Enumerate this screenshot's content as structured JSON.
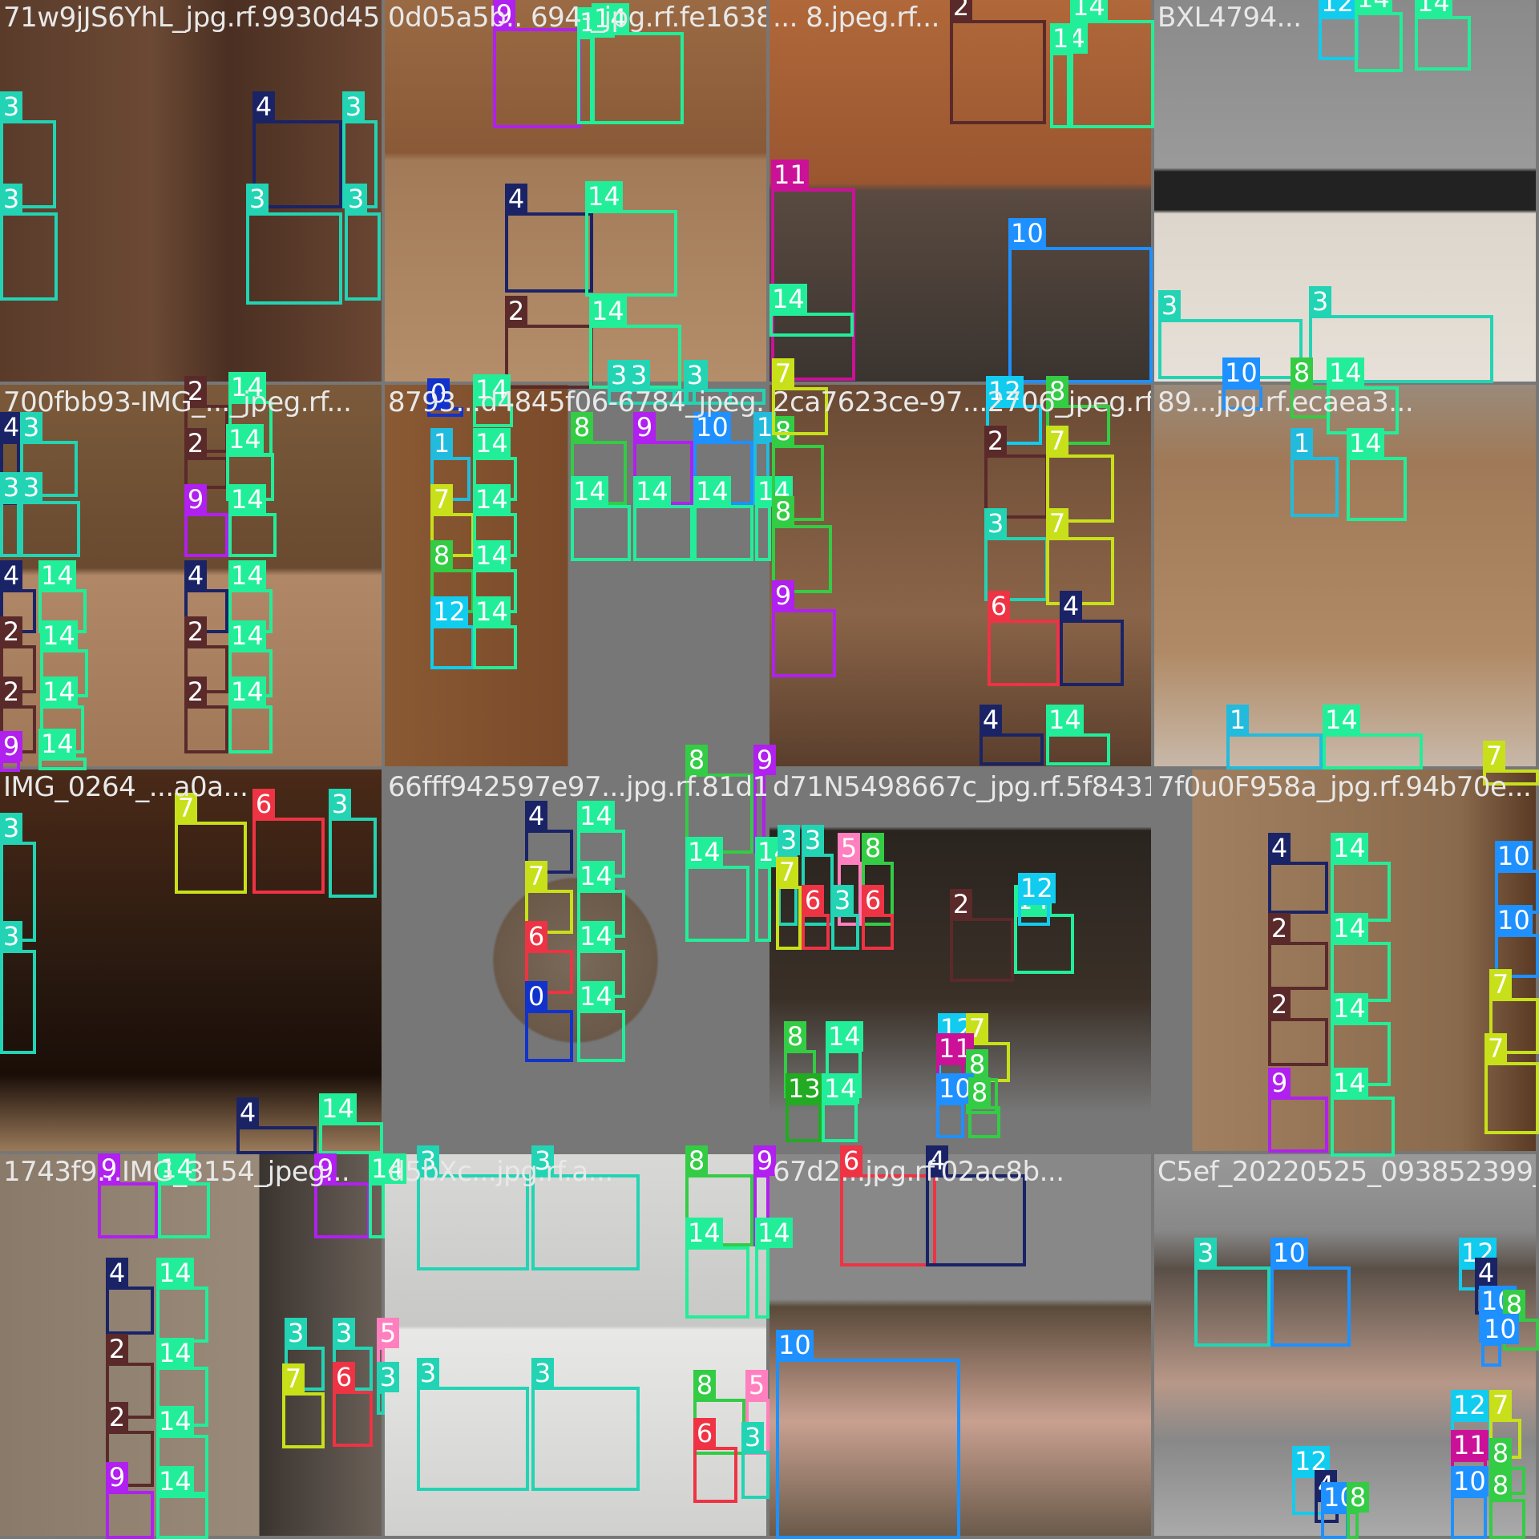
{
  "tiles": [
    {
      "name": "71w9jJS6YhL_jpg.rf.9930d45...",
      "bg": "wood-dark"
    },
    {
      "name": "0d05a5b.. 694-_jpg.rf.fe1638...",
      "bg": "wood-light"
    },
    {
      "name": "... 8.jpeg.rf...",
      "bg": "wood-orange"
    },
    {
      "name": "BXL4794...",
      "bg": "carpet"
    },
    {
      "name": "700fbb93-IMG_..._jpeg.rf...",
      "bg": "wood-split"
    },
    {
      "name": "8793...d4845f06-6784_jpeg.r...",
      "bg": "wood-gray"
    },
    {
      "name": "2ca7623ce-97...2706_jpeg.rf...",
      "bg": "wood-mid"
    },
    {
      "name": "89...jpg.rf.ecaea3...",
      "bg": "wood-pale"
    },
    {
      "name": "IMG_0264_...a0a...",
      "bg": "wood-black"
    },
    {
      "name": "66fff942597e97...jpg.rf.81d1...",
      "bg": "gray-center"
    },
    {
      "name": "d71N5498667c_jpg.rf.5f84316...",
      "bg": "dark-table"
    },
    {
      "name": "7f0u0F958a_jpg.rf.94b70e...",
      "bg": "wood-tan"
    },
    {
      "name": "1743f9...IMG_3154_jpeg...",
      "bg": "wood-split2"
    },
    {
      "name": "d5bXc...jpg.rf.a...",
      "bg": "white-table"
    },
    {
      "name": "67d2...jpg.rf.02ac8b...",
      "bg": "gray-hand"
    },
    {
      "name": "C5ef_20220525_093852399_...",
      "bg": "gray-light"
    }
  ],
  "classes": {
    "0": "#1133cc",
    "1": "#22bbdd",
    "2": "#5a2a2a",
    "3": "#22d4b4",
    "4": "#1a2366",
    "5": "#ff7fbf",
    "6": "#ee3344",
    "7": "#c8e01a",
    "8": "#33cc44",
    "9": "#b020ee",
    "10": "#1e90ff",
    "11": "#cc1199",
    "12": "#11ccee",
    "13": "#22aa22",
    "14": "#22ee99"
  },
  "boxes": [
    [
      0,
      3,
      0,
      150,
      70,
      110
    ],
    [
      0,
      3,
      0,
      265,
      72,
      110
    ],
    [
      0,
      4,
      315,
      150,
      112,
      110
    ],
    [
      0,
      3,
      427,
      150,
      44,
      110
    ],
    [
      0,
      3,
      307,
      265,
      120,
      115
    ],
    [
      0,
      3,
      430,
      265,
      45,
      110
    ],
    [
      1,
      9,
      615,
      35,
      110,
      125
    ],
    [
      1,
      14,
      720,
      45,
      20,
      110
    ],
    [
      1,
      14,
      738,
      40,
      115,
      115
    ],
    [
      1,
      4,
      630,
      265,
      110,
      100
    ],
    [
      1,
      14,
      730,
      262,
      115,
      108
    ],
    [
      1,
      2,
      630,
      405,
      110,
      80
    ],
    [
      1,
      14,
      735,
      405,
      115,
      80
    ],
    [
      1,
      3,
      758,
      485,
      110,
      20
    ],
    [
      1,
      3,
      855,
      485,
      100,
      20
    ],
    [
      2,
      2,
      1185,
      25,
      120,
      130
    ],
    [
      2,
      14,
      1310,
      65,
      25,
      95
    ],
    [
      2,
      14,
      1335,
      25,
      105,
      135
    ],
    [
      2,
      11,
      962,
      235,
      105,
      240
    ],
    [
      2,
      14,
      960,
      390,
      105,
      30
    ],
    [
      2,
      10,
      1258,
      308,
      180,
      170
    ],
    [
      3,
      12,
      1645,
      20,
      50,
      55
    ],
    [
      3,
      14,
      1690,
      15,
      60,
      75
    ],
    [
      3,
      14,
      1765,
      20,
      70,
      68
    ],
    [
      3,
      3,
      1445,
      398,
      180,
      75
    ],
    [
      3,
      3,
      1633,
      393,
      230,
      85
    ],
    [
      4,
      4,
      0,
      550,
      25,
      80
    ],
    [
      4,
      3,
      25,
      550,
      72,
      70
    ],
    [
      4,
      3,
      0,
      625,
      25,
      70
    ],
    [
      4,
      3,
      25,
      625,
      75,
      70
    ],
    [
      4,
      2,
      230,
      505,
      55,
      60
    ],
    [
      4,
      14,
      285,
      500,
      55,
      70
    ],
    [
      4,
      2,
      230,
      570,
      55,
      40
    ],
    [
      4,
      14,
      282,
      565,
      60,
      60
    ],
    [
      4,
      9,
      230,
      640,
      55,
      55
    ],
    [
      4,
      14,
      285,
      640,
      60,
      55
    ],
    [
      4,
      4,
      0,
      735,
      45,
      55
    ],
    [
      4,
      14,
      48,
      735,
      60,
      55
    ],
    [
      4,
      2,
      0,
      805,
      45,
      60
    ],
    [
      4,
      14,
      50,
      810,
      60,
      60
    ],
    [
      4,
      2,
      0,
      880,
      45,
      60
    ],
    [
      4,
      14,
      50,
      880,
      55,
      60
    ],
    [
      4,
      9,
      0,
      948,
      25,
      15
    ],
    [
      4,
      14,
      48,
      945,
      60,
      16
    ],
    [
      4,
      4,
      230,
      735,
      55,
      55
    ],
    [
      4,
      14,
      285,
      735,
      55,
      55
    ],
    [
      4,
      2,
      230,
      805,
      55,
      60
    ],
    [
      4,
      14,
      285,
      810,
      55,
      60
    ],
    [
      4,
      2,
      230,
      880,
      55,
      60
    ],
    [
      4,
      14,
      285,
      880,
      55,
      60
    ],
    [
      5,
      0,
      533,
      508,
      45,
      12
    ],
    [
      5,
      14,
      590,
      503,
      50,
      30
    ],
    [
      5,
      1,
      537,
      570,
      50,
      55
    ],
    [
      5,
      14,
      590,
      570,
      55,
      55
    ],
    [
      5,
      7,
      537,
      640,
      55,
      55
    ],
    [
      5,
      14,
      590,
      640,
      55,
      55
    ],
    [
      5,
      8,
      537,
      710,
      55,
      55
    ],
    [
      5,
      14,
      590,
      710,
      55,
      55
    ],
    [
      5,
      12,
      537,
      780,
      55,
      55
    ],
    [
      5,
      14,
      590,
      780,
      55,
      55
    ],
    [
      5,
      8,
      712,
      550,
      70,
      80
    ],
    [
      5,
      14,
      712,
      630,
      75,
      70
    ],
    [
      5,
      9,
      790,
      550,
      75,
      80
    ],
    [
      5,
      14,
      790,
      630,
      75,
      70
    ],
    [
      5,
      10,
      865,
      550,
      75,
      80
    ],
    [
      5,
      14,
      865,
      630,
      75,
      70
    ],
    [
      5,
      1,
      940,
      550,
      20,
      80
    ],
    [
      5,
      14,
      942,
      630,
      20,
      70
    ],
    [
      5,
      3,
      783,
      485,
      60,
      20
    ],
    [
      5,
      3,
      853,
      485,
      60,
      20
    ],
    [
      6,
      8,
      963,
      555,
      65,
      95
    ],
    [
      6,
      8,
      963,
      655,
      75,
      85
    ],
    [
      6,
      9,
      963,
      760,
      80,
      85
    ],
    [
      6,
      12,
      1230,
      505,
      70,
      50
    ],
    [
      6,
      8,
      1305,
      505,
      80,
      50
    ],
    [
      6,
      2,
      1228,
      567,
      80,
      80
    ],
    [
      6,
      7,
      1305,
      567,
      85,
      85
    ],
    [
      6,
      3,
      1228,
      670,
      80,
      80
    ],
    [
      6,
      7,
      1305,
      670,
      85,
      85
    ],
    [
      6,
      6,
      1232,
      773,
      90,
      83
    ],
    [
      6,
      4,
      1322,
      773,
      80,
      83
    ],
    [
      6,
      4,
      1222,
      915,
      80,
      40
    ],
    [
      6,
      14,
      1305,
      915,
      80,
      40
    ],
    [
      6,
      7,
      963,
      483,
      70,
      60
    ],
    [
      7,
      10,
      1525,
      482,
      50,
      30
    ],
    [
      7,
      8,
      1610,
      482,
      50,
      40
    ],
    [
      7,
      14,
      1655,
      482,
      90,
      60
    ],
    [
      7,
      1,
      1610,
      570,
      60,
      75
    ],
    [
      7,
      14,
      1680,
      570,
      75,
      80
    ],
    [
      7,
      1,
      1530,
      915,
      120,
      45
    ],
    [
      7,
      14,
      1650,
      915,
      125,
      45
    ],
    [
      8,
      3,
      0,
      1050,
      45,
      125
    ],
    [
      8,
      3,
      0,
      1185,
      45,
      130
    ],
    [
      8,
      7,
      218,
      1025,
      90,
      90
    ],
    [
      8,
      6,
      315,
      1020,
      90,
      95
    ],
    [
      8,
      3,
      410,
      1020,
      60,
      100
    ],
    [
      8,
      4,
      295,
      1405,
      100,
      35
    ],
    [
      8,
      14,
      398,
      1400,
      80,
      40
    ],
    [
      9,
      4,
      655,
      1035,
      60,
      55
    ],
    [
      9,
      14,
      720,
      1035,
      60,
      60
    ],
    [
      9,
      7,
      655,
      1110,
      60,
      55
    ],
    [
      9,
      14,
      720,
      1110,
      60,
      60
    ],
    [
      9,
      6,
      655,
      1185,
      60,
      55
    ],
    [
      9,
      14,
      720,
      1185,
      60,
      60
    ],
    [
      9,
      0,
      655,
      1260,
      60,
      65
    ],
    [
      9,
      14,
      720,
      1260,
      60,
      65
    ],
    [
      9,
      8,
      855,
      965,
      85,
      100
    ],
    [
      9,
      14,
      855,
      1080,
      80,
      95
    ],
    [
      9,
      9,
      940,
      965,
      15,
      100
    ],
    [
      9,
      14,
      942,
      1080,
      20,
      95
    ],
    [
      10,
      3,
      970,
      1065,
      25,
      90
    ],
    [
      10,
      3,
      1000,
      1065,
      40,
      90
    ],
    [
      10,
      5,
      1045,
      1075,
      30,
      80
    ],
    [
      10,
      8,
      1075,
      1075,
      40,
      80
    ],
    [
      10,
      7,
      968,
      1105,
      32,
      80
    ],
    [
      10,
      6,
      1000,
      1140,
      35,
      45
    ],
    [
      10,
      3,
      1037,
      1140,
      35,
      45
    ],
    [
      10,
      6,
      1075,
      1140,
      40,
      45
    ],
    [
      10,
      2,
      1185,
      1145,
      80,
      80
    ],
    [
      10,
      14,
      1265,
      1140,
      75,
      75
    ],
    [
      10,
      12,
      1270,
      1125,
      40,
      30
    ],
    [
      10,
      8,
      978,
      1310,
      40,
      60
    ],
    [
      10,
      14,
      1030,
      1310,
      45,
      60
    ],
    [
      10,
      13,
      980,
      1375,
      45,
      50
    ],
    [
      10,
      14,
      1025,
      1375,
      45,
      50
    ],
    [
      10,
      12,
      1170,
      1300,
      40,
      70
    ],
    [
      10,
      7,
      1205,
      1300,
      55,
      50
    ],
    [
      10,
      11,
      1168,
      1325,
      35,
      40
    ],
    [
      10,
      8,
      1205,
      1345,
      40,
      45
    ],
    [
      10,
      10,
      1168,
      1375,
      35,
      45
    ],
    [
      10,
      8,
      1208,
      1380,
      40,
      40
    ],
    [
      11,
      4,
      1582,
      1075,
      75,
      65
    ],
    [
      11,
      14,
      1660,
      1075,
      75,
      75
    ],
    [
      11,
      2,
      1582,
      1175,
      75,
      60
    ],
    [
      11,
      14,
      1660,
      1175,
      75,
      75
    ],
    [
      11,
      2,
      1582,
      1270,
      75,
      60
    ],
    [
      11,
      14,
      1660,
      1275,
      75,
      80
    ],
    [
      11,
      9,
      1582,
      1368,
      75,
      70
    ],
    [
      11,
      14,
      1660,
      1368,
      80,
      75
    ],
    [
      11,
      10,
      1865,
      1085,
      55,
      55
    ],
    [
      11,
      10,
      1865,
      1165,
      55,
      55
    ],
    [
      11,
      7,
      1858,
      1245,
      62,
      70
    ],
    [
      11,
      7,
      1852,
      1325,
      68,
      90
    ],
    [
      11,
      7,
      1850,
      960,
      70,
      20
    ],
    [
      12,
      9,
      122,
      1475,
      75,
      70
    ],
    [
      12,
      14,
      197,
      1475,
      65,
      70
    ],
    [
      12,
      9,
      392,
      1475,
      70,
      70
    ],
    [
      12,
      14,
      460,
      1475,
      20,
      70
    ],
    [
      12,
      4,
      132,
      1605,
      60,
      60
    ],
    [
      12,
      14,
      195,
      1605,
      65,
      70
    ],
    [
      12,
      2,
      132,
      1700,
      60,
      70
    ],
    [
      12,
      14,
      195,
      1705,
      65,
      75
    ],
    [
      12,
      2,
      132,
      1785,
      60,
      70
    ],
    [
      12,
      14,
      195,
      1790,
      65,
      75
    ],
    [
      12,
      9,
      132,
      1860,
      60,
      60
    ],
    [
      12,
      14,
      195,
      1865,
      65,
      60
    ],
    [
      12,
      3,
      355,
      1680,
      50,
      55
    ],
    [
      12,
      3,
      415,
      1680,
      50,
      55
    ],
    [
      12,
      7,
      352,
      1737,
      53,
      70
    ],
    [
      12,
      6,
      415,
      1735,
      50,
      70
    ],
    [
      12,
      5,
      470,
      1680,
      10,
      40
    ],
    [
      12,
      3,
      470,
      1735,
      10,
      30
    ],
    [
      13,
      3,
      520,
      1465,
      140,
      120
    ],
    [
      13,
      3,
      663,
      1465,
      135,
      120
    ],
    [
      13,
      3,
      520,
      1730,
      140,
      130
    ],
    [
      13,
      3,
      663,
      1730,
      135,
      130
    ],
    [
      13,
      8,
      855,
      1465,
      85,
      90
    ],
    [
      13,
      14,
      855,
      1555,
      80,
      90
    ],
    [
      13,
      9,
      940,
      1465,
      20,
      90
    ],
    [
      13,
      14,
      942,
      1555,
      18,
      90
    ],
    [
      13,
      8,
      865,
      1745,
      65,
      70
    ],
    [
      13,
      5,
      930,
      1745,
      30,
      70
    ],
    [
      13,
      6,
      865,
      1805,
      55,
      70
    ],
    [
      13,
      3,
      925,
      1810,
      35,
      60
    ],
    [
      14,
      6,
      1048,
      1465,
      120,
      115
    ],
    [
      14,
      4,
      1155,
      1465,
      125,
      115
    ],
    [
      14,
      10,
      968,
      1695,
      230,
      225
    ]
  ],
  "box_extra": [
    [
      15,
      3,
      1490,
      1580,
      95,
      100
    ],
    [
      15,
      10,
      1585,
      1580,
      100,
      100
    ],
    [
      15,
      12,
      1820,
      1580,
      40,
      30
    ],
    [
      15,
      4,
      1840,
      1605,
      35,
      35
    ],
    [
      15,
      10,
      1845,
      1640,
      35,
      35
    ],
    [
      15,
      8,
      1875,
      1645,
      45,
      40
    ],
    [
      15,
      10,
      1848,
      1675,
      25,
      30
    ],
    [
      15,
      12,
      1810,
      1770,
      50,
      50
    ],
    [
      15,
      7,
      1858,
      1770,
      40,
      50
    ],
    [
      15,
      11,
      1810,
      1820,
      45,
      40
    ],
    [
      15,
      8,
      1858,
      1830,
      45,
      35
    ],
    [
      15,
      10,
      1810,
      1865,
      45,
      55
    ],
    [
      15,
      8,
      1858,
      1870,
      45,
      50
    ],
    [
      15,
      12,
      1612,
      1840,
      40,
      50
    ],
    [
      15,
      4,
      1640,
      1870,
      30,
      30
    ],
    [
      15,
      10,
      1648,
      1885,
      35,
      35
    ],
    [
      15,
      8,
      1680,
      1885,
      15,
      35
    ]
  ]
}
